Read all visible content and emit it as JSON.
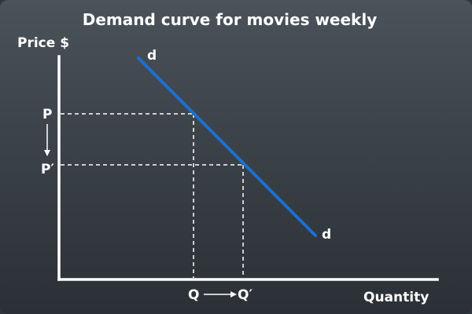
{
  "title": "Demand curve for movies weekly",
  "y_axis_label": "Price $",
  "x_axis_label": "Quantity",
  "curve_label": "d",
  "price_initial_label": "P",
  "price_new_label": "P′",
  "quantity_initial_label": "Q",
  "quantity_new_label": "Q′",
  "colors": {
    "curve": "#1d6fd1",
    "axes": "#ffffff",
    "guides": "#ffffff"
  }
}
